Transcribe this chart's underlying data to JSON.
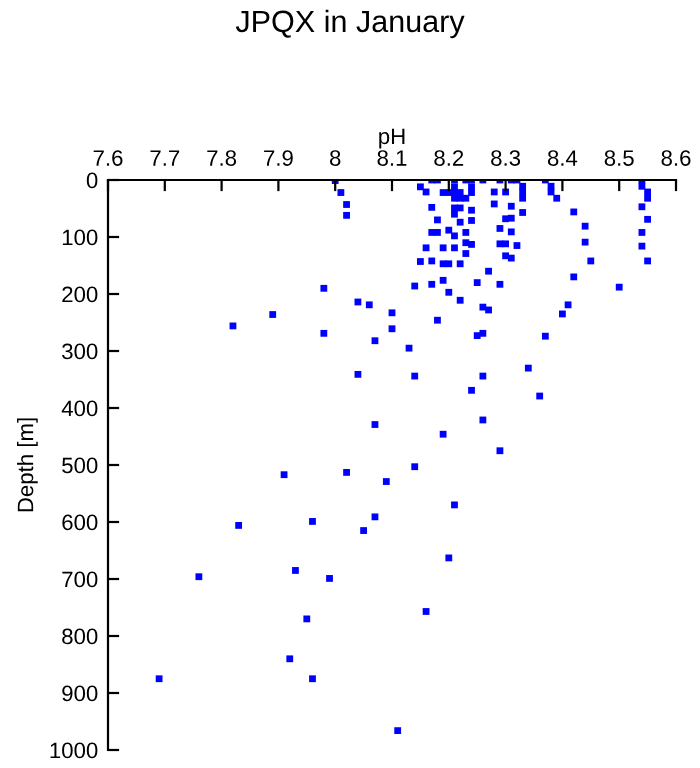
{
  "chart_data": {
    "type": "scatter",
    "title": "JPQX in January",
    "xlabel": "pH",
    "ylabel": "Depth [m]",
    "x": [
      8.0,
      8.01,
      8.02,
      8.02,
      7.98,
      8.04,
      8.06,
      8.1,
      7.89,
      7.82,
      7.98,
      8.1,
      8.07,
      8.04,
      8.07,
      8.29,
      7.91,
      8.02,
      8.09,
      8.14,
      8.21,
      7.83,
      7.96,
      8.07,
      8.05,
      8.2,
      7.76,
      7.93,
      7.99,
      8.16,
      7.95,
      7.92,
      7.69,
      7.96,
      8.11,
      8.17,
      8.18,
      8.15,
      8.16,
      8.17,
      8.18,
      8.17,
      8.16,
      8.17,
      8.15,
      8.18,
      8.19,
      8.19,
      8.2,
      8.19,
      8.14,
      8.17,
      8.2,
      8.22,
      8.18,
      8.13,
      8.14,
      8.19,
      8.21,
      8.23,
      8.24,
      8.19,
      8.2,
      8.21,
      8.22,
      8.21,
      8.24,
      8.21,
      8.22,
      8.23,
      8.24,
      8.21,
      8.22,
      8.24,
      8.21,
      8.22,
      8.24,
      8.2,
      8.21,
      8.23,
      8.23,
      8.21,
      8.24,
      8.22,
      8.23,
      8.25,
      8.27,
      8.26,
      8.27,
      8.25,
      8.26,
      8.26,
      8.24,
      8.26,
      8.26,
      8.29,
      8.31,
      8.32,
      8.28,
      8.3,
      8.28,
      8.31,
      8.3,
      8.31,
      8.33,
      8.33,
      8.33,
      8.33,
      8.29,
      8.31,
      8.29,
      8.3,
      8.32,
      8.3,
      8.31,
      8.29,
      8.37,
      8.34,
      8.36,
      8.41,
      8.4,
      8.37,
      8.38,
      8.38,
      8.39,
      8.42,
      8.44,
      8.44,
      8.45,
      8.42,
      8.5,
      8.54,
      8.54,
      8.55,
      8.55,
      8.54,
      8.55,
      8.54,
      8.54,
      8.55
    ],
    "series": [
      {
        "color": "#0000ff",
        "values": [
          1,
          22,
          43,
          62,
          190,
          214,
          219,
          233,
          236,
          256,
          269,
          261,
          282,
          341,
          429,
          475,
          517,
          513,
          529,
          503,
          570,
          606,
          599,
          591,
          615,
          663,
          696,
          685,
          699,
          757,
          770,
          840,
          875,
          875,
          966,
          0,
          0,
          12,
          21,
          48,
          70,
          92,
          119,
          142,
          143,
          92,
          119,
          147,
          147,
          176,
          186,
          183,
          197,
          211,
          246,
          295,
          344,
          446,
          0,
          0,
          0,
          22,
          22,
          22,
          22,
          12,
          12,
          32,
          32,
          32,
          22,
          49,
          49,
          53,
          60,
          74,
          71,
          88,
          98,
          92,
          110,
          119,
          113,
          147,
          129,
          180,
          160,
          223,
          228,
          273,
          269,
          344,
          369,
          421,
          0,
          0,
          0,
          0,
          21,
          21,
          42,
          46,
          68,
          67,
          11,
          21,
          32,
          57,
          85,
          91,
          112,
          112,
          115,
          133,
          137,
          183,
          274,
          330,
          379,
          219,
          235,
          0,
          11,
          21,
          32,
          56,
          81,
          109,
          142,
          170,
          188,
          0,
          11,
          21,
          32,
          47,
          69,
          92,
          116,
          142
        ]
      }
    ],
    "xlim": [
      7.6,
      8.6
    ],
    "xticks": [
      7.6,
      7.7,
      7.8,
      7.9,
      8,
      8.1,
      8.2,
      8.3,
      8.4,
      8.5,
      8.6
    ],
    "ylim": [
      1000,
      0
    ],
    "yticks": [
      0,
      100,
      200,
      300,
      400,
      500,
      600,
      700,
      800,
      900,
      1000
    ],
    "marker": "square",
    "grid": false,
    "legend": false
  }
}
